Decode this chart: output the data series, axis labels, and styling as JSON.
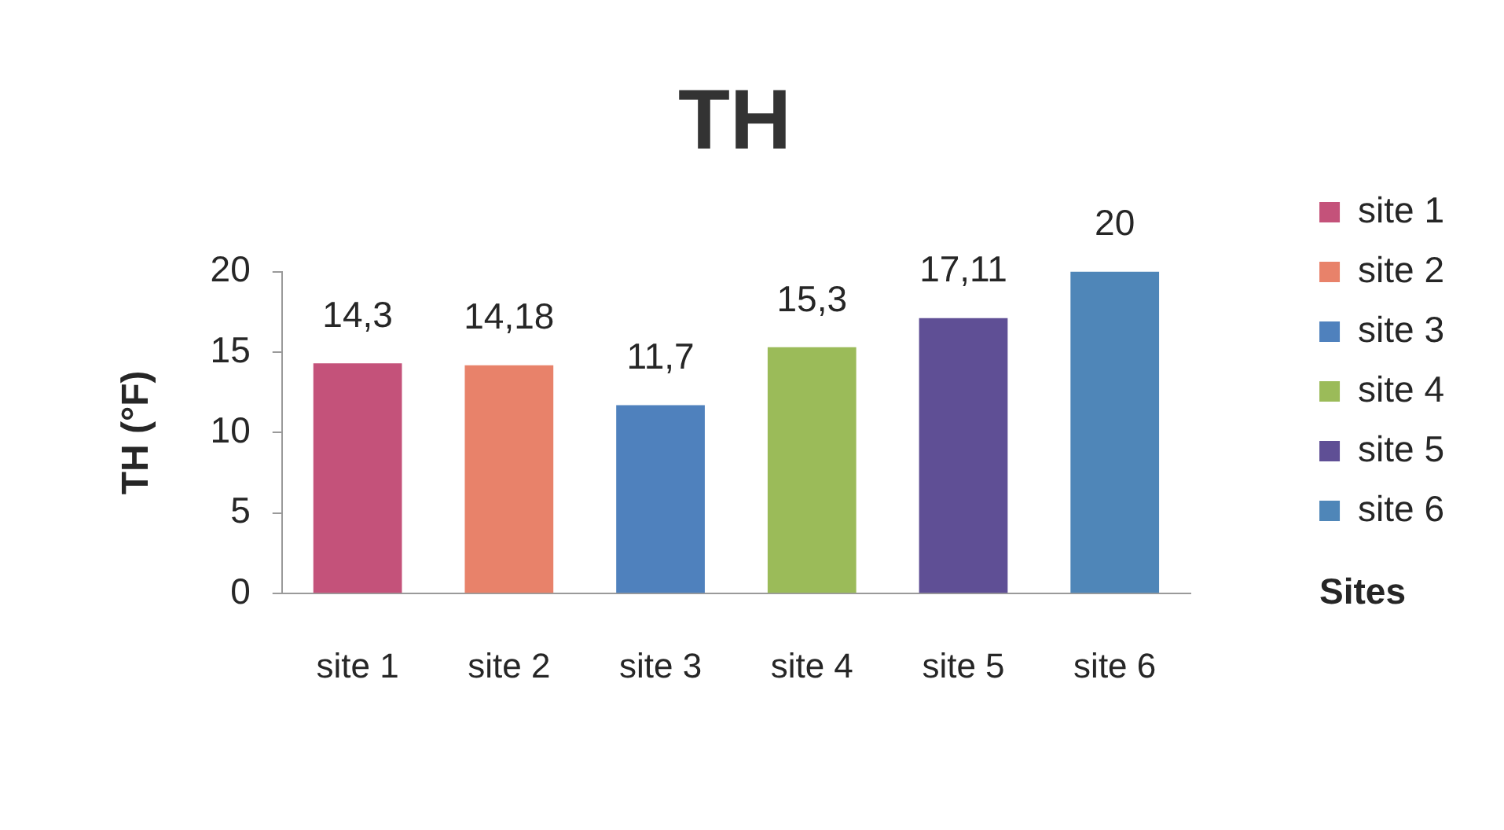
{
  "chart_data": {
    "type": "bar",
    "title": "TH",
    "xlabel": "Sites",
    "ylabel": "TH (°F)",
    "categories": [
      "site 1",
      "site 2",
      "site 3",
      "site 4",
      "site 5",
      "site 6"
    ],
    "series": [
      {
        "name": "site 1",
        "color": "#c4527a",
        "values": [
          14.3,
          null,
          null,
          null,
          null,
          null
        ],
        "value_labels": [
          "14,3",
          null,
          null,
          null,
          null,
          null
        ]
      },
      {
        "name": "site 2",
        "color": "#e8826a",
        "values": [
          null,
          14.18,
          null,
          null,
          null,
          null
        ],
        "value_labels": [
          null,
          "14,18",
          null,
          null,
          null,
          null
        ]
      },
      {
        "name": "site 3",
        "color": "#4f81bd",
        "values": [
          null,
          null,
          11.7,
          null,
          null,
          null
        ],
        "value_labels": [
          null,
          null,
          "11,7",
          null,
          null,
          null
        ]
      },
      {
        "name": "site 4",
        "color": "#9bbb59",
        "values": [
          null,
          null,
          null,
          15.3,
          null,
          null
        ],
        "value_labels": [
          null,
          null,
          null,
          "15,3",
          null,
          null
        ]
      },
      {
        "name": "site 5",
        "color": "#5f4f95",
        "values": [
          null,
          null,
          null,
          null,
          17.11,
          null
        ],
        "value_labels": [
          null,
          null,
          null,
          null,
          "17,11",
          null
        ]
      },
      {
        "name": "site 6",
        "color": "#4f86b8",
        "values": [
          null,
          null,
          null,
          null,
          null,
          20
        ],
        "value_labels": [
          null,
          null,
          null,
          null,
          null,
          "20"
        ]
      }
    ],
    "ylim": [
      0,
      20
    ],
    "yticks": [
      0,
      5,
      10,
      15,
      20
    ],
    "legend": "right"
  }
}
